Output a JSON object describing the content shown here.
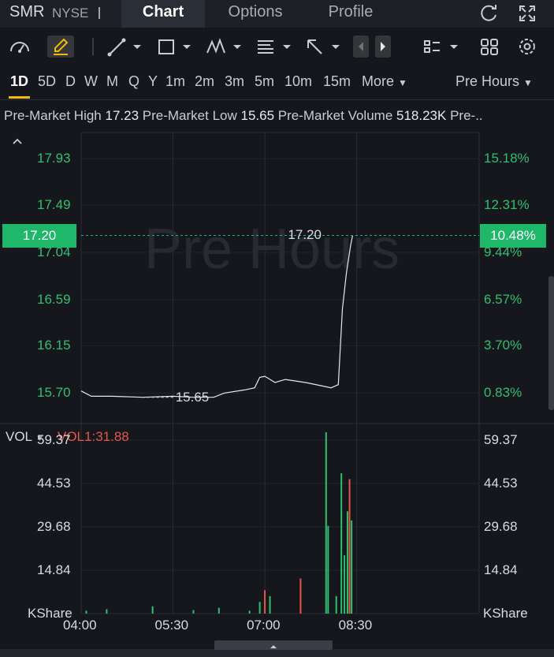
{
  "header": {
    "symbol": "SMR",
    "exchange": "NYSE",
    "tabs": [
      {
        "label": "Chart",
        "active": true
      },
      {
        "label": "Options",
        "active": false
      },
      {
        "label": "Profile",
        "active": false
      }
    ],
    "icons": [
      "refresh-icon",
      "fullscreen-icon"
    ]
  },
  "toolbar": {
    "icons": [
      "indicator-gauge-icon",
      "draw-pencil-icon",
      "trendline-icon",
      "rectangle-icon",
      "pattern-icon",
      "fibonacci-icon",
      "arrow-icon",
      "prev-icon",
      "next-icon",
      "layout-list-icon",
      "grid-icon",
      "settings-icon"
    ]
  },
  "periods": {
    "items": [
      "1D",
      "5D",
      "D",
      "W",
      "M",
      "Q",
      "Y",
      "1m",
      "2m",
      "3m",
      "5m",
      "10m",
      "15m"
    ],
    "more_label": "More",
    "session_label": "Pre Hours",
    "active": "1D"
  },
  "stats": {
    "high_label": "Pre-Market High",
    "high_value": "17.23",
    "low_label": "Pre-Market Low",
    "low_value": "15.65",
    "volume_label": "Pre-Market Volume",
    "volume_value": "518.23K",
    "trailing": "Pre-.."
  },
  "chart_data": {
    "type": "line",
    "watermark": "Pre Hours",
    "price_ticks": [
      "17.93",
      "17.49",
      "17.04",
      "16.59",
      "16.15",
      "15.70"
    ],
    "percent_ticks": [
      "15.18%",
      "12.31%",
      "9.44%",
      "6.57%",
      "3.70%",
      "0.83%"
    ],
    "current_price": "17.20",
    "current_percent": "10.48%",
    "high_label": "17.20",
    "low_label": "15.65",
    "x_ticks": [
      "04:00",
      "05:30",
      "07:00",
      "08:30"
    ],
    "price_series": [
      {
        "time": "04:00",
        "price": 15.72
      },
      {
        "time": "04:10",
        "price": 15.67
      },
      {
        "time": "04:30",
        "price": 15.67
      },
      {
        "time": "05:00",
        "price": 15.66
      },
      {
        "time": "05:30",
        "price": 15.67
      },
      {
        "time": "05:50",
        "price": 15.66
      },
      {
        "time": "06:10",
        "price": 15.66
      },
      {
        "time": "06:20",
        "price": 15.7
      },
      {
        "time": "06:40",
        "price": 15.73
      },
      {
        "time": "06:50",
        "price": 15.75
      },
      {
        "time": "06:55",
        "price": 15.85
      },
      {
        "time": "07:00",
        "price": 15.86
      },
      {
        "time": "07:10",
        "price": 15.8
      },
      {
        "time": "07:20",
        "price": 15.83
      },
      {
        "time": "07:40",
        "price": 15.8
      },
      {
        "time": "07:55",
        "price": 15.77
      },
      {
        "time": "08:05",
        "price": 15.75
      },
      {
        "time": "08:12",
        "price": 15.78
      },
      {
        "time": "08:16",
        "price": 16.5
      },
      {
        "time": "08:20",
        "price": 16.85
      },
      {
        "time": "08:24",
        "price": 17.1
      },
      {
        "time": "08:26",
        "price": 17.2
      }
    ],
    "volume": {
      "label": "VOL",
      "value_label": "VOL1:31.88",
      "ticks": [
        "59.37",
        "44.53",
        "29.68",
        "14.84"
      ],
      "unit": "KShare",
      "bars": [
        {
          "time": "04:05",
          "value": 1.0,
          "color": "#2fbf71"
        },
        {
          "time": "04:25",
          "value": 1.5,
          "color": "#2fbf71"
        },
        {
          "time": "05:10",
          "value": 2.5,
          "color": "#2fbf71"
        },
        {
          "time": "05:50",
          "value": 1.2,
          "color": "#2fbf71"
        },
        {
          "time": "06:15",
          "value": 2.0,
          "color": "#2fbf71"
        },
        {
          "time": "06:45",
          "value": 1.0,
          "color": "#2fbf71"
        },
        {
          "time": "06:55",
          "value": 4.0,
          "color": "#2fbf71"
        },
        {
          "time": "07:00",
          "value": 8.0,
          "color": "#e5564a"
        },
        {
          "time": "07:05",
          "value": 6.0,
          "color": "#2fbf71"
        },
        {
          "time": "07:35",
          "value": 12.0,
          "color": "#e5564a"
        },
        {
          "time": "08:00",
          "value": 62.0,
          "color": "#2fbf71"
        },
        {
          "time": "08:02",
          "value": 30.0,
          "color": "#2fbf71"
        },
        {
          "time": "08:10",
          "value": 6.0,
          "color": "#2fbf71"
        },
        {
          "time": "08:15",
          "value": 48.0,
          "color": "#2fbf71"
        },
        {
          "time": "08:18",
          "value": 20.0,
          "color": "#2fbf71"
        },
        {
          "time": "08:21",
          "value": 35.0,
          "color": "#2fbf71"
        },
        {
          "time": "08:23",
          "value": 46.0,
          "color": "#e5564a"
        },
        {
          "time": "08:25",
          "value": 31.88,
          "color": "#2fbf71"
        }
      ]
    }
  },
  "colors": {
    "up": "#2fbf71",
    "down": "#e5564a",
    "accent": "#f0b90b"
  }
}
